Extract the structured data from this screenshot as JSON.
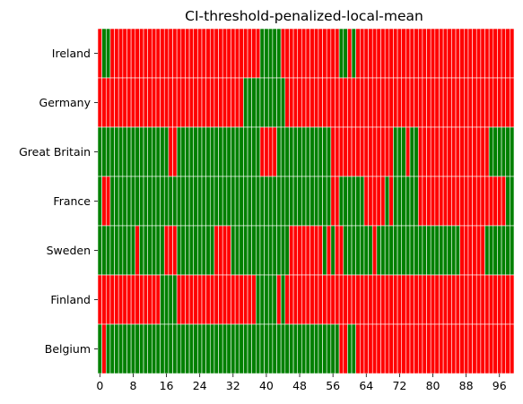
{
  "chart_data": {
    "type": "heatmap",
    "title": "CI-threshold-penalized-local-mean",
    "xlabel": "",
    "ylabel": "",
    "rows": [
      "Ireland",
      "Germany",
      "Great Britain",
      "France",
      "Sweden",
      "Finland",
      "Belgium"
    ],
    "x_count": 100,
    "x_ticks": [
      "0",
      "8",
      "16",
      "24",
      "32",
      "40",
      "48",
      "56",
      "64",
      "72",
      "80",
      "88",
      "96"
    ],
    "x_tick_values": [
      0,
      8,
      16,
      24,
      32,
      40,
      48,
      56,
      64,
      72,
      80,
      88,
      96
    ],
    "colors": {
      "0": "#ff0000",
      "1": "#008000",
      "gridline": "#ffffff"
    },
    "legend": "none",
    "grid": false,
    "runs": [
      [
        [
          0,
          0
        ],
        [
          1,
          1
        ],
        [
          3,
          0
        ],
        [
          39,
          1
        ],
        [
          44,
          0
        ],
        [
          58,
          1
        ],
        [
          60,
          0
        ],
        [
          61,
          1
        ],
        [
          62,
          0
        ]
      ],
      [
        [
          0,
          0
        ],
        [
          35,
          1
        ],
        [
          45,
          0
        ]
      ],
      [
        [
          0,
          1
        ],
        [
          17,
          0
        ],
        [
          19,
          1
        ],
        [
          39,
          0
        ],
        [
          43,
          1
        ],
        [
          56,
          0
        ],
        [
          71,
          1
        ],
        [
          74,
          0
        ],
        [
          75,
          1
        ],
        [
          77,
          0
        ],
        [
          94,
          1
        ]
      ],
      [
        [
          0,
          1
        ],
        [
          1,
          0
        ],
        [
          3,
          1
        ],
        [
          56,
          0
        ],
        [
          58,
          1
        ],
        [
          64,
          0
        ],
        [
          69,
          1
        ],
        [
          70,
          0
        ],
        [
          71,
          1
        ],
        [
          77,
          0
        ],
        [
          98,
          1
        ]
      ],
      [
        [
          0,
          1
        ],
        [
          9,
          0
        ],
        [
          10,
          1
        ],
        [
          16,
          0
        ],
        [
          19,
          1
        ],
        [
          28,
          0
        ],
        [
          32,
          1
        ],
        [
          46,
          0
        ],
        [
          54,
          1
        ],
        [
          55,
          0
        ],
        [
          56,
          1
        ],
        [
          57,
          0
        ],
        [
          59,
          1
        ],
        [
          66,
          0
        ],
        [
          67,
          1
        ],
        [
          87,
          0
        ],
        [
          93,
          1
        ]
      ],
      [
        [
          0,
          0
        ],
        [
          15,
          1
        ],
        [
          19,
          0
        ],
        [
          38,
          1
        ],
        [
          43,
          0
        ],
        [
          44,
          1
        ],
        [
          45,
          0
        ]
      ],
      [
        [
          0,
          1
        ],
        [
          1,
          0
        ],
        [
          2,
          1
        ],
        [
          58,
          0
        ],
        [
          60,
          1
        ],
        [
          62,
          0
        ]
      ]
    ]
  }
}
